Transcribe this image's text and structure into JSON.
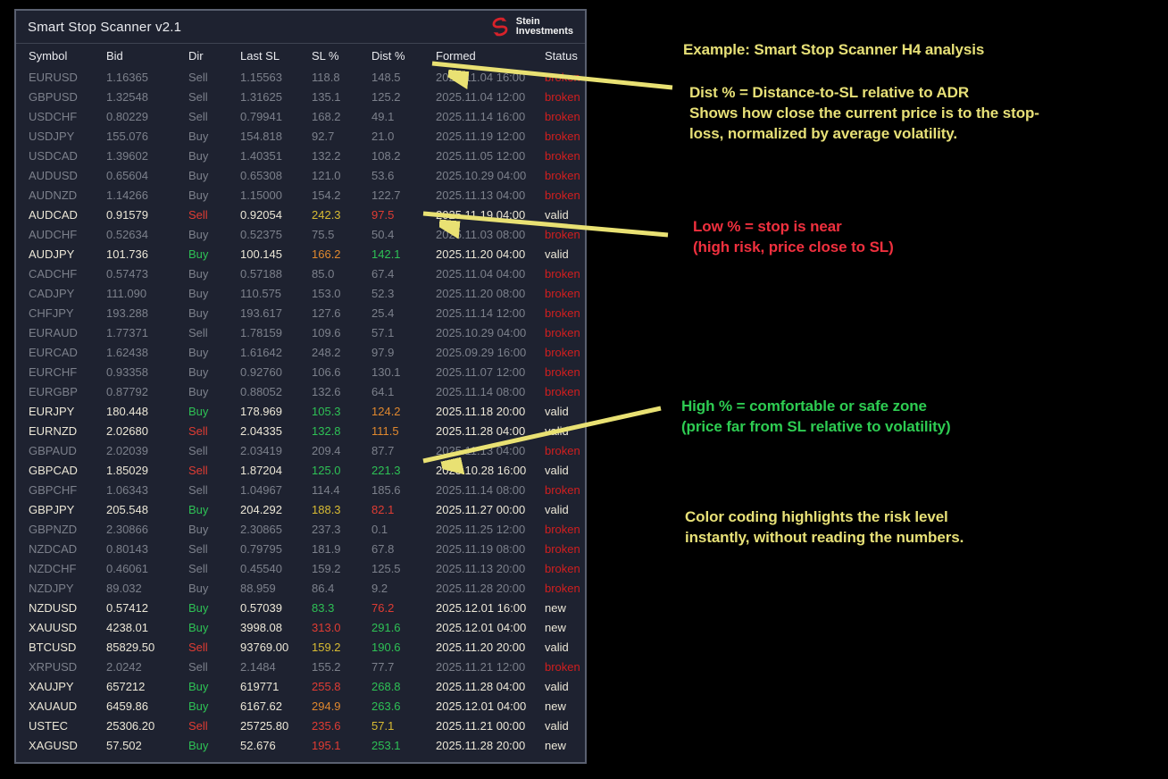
{
  "panel": {
    "title": "Smart Stop Scanner v2.1",
    "brand": {
      "line1": "Stein",
      "line2": "Investments",
      "logo_color": "#d8222a"
    }
  },
  "table": {
    "columns": [
      "Symbol",
      "Bid",
      "Dir",
      "Last SL",
      "SL %",
      "Dist %",
      "Formed",
      "Status"
    ],
    "rows": [
      {
        "symbol": "EURUSD",
        "bid": "1.16365",
        "dir": "Sell",
        "last_sl": "1.15563",
        "sl_pct": "118.8",
        "sl_color": "",
        "dist_pct": "148.5",
        "dist_color": "",
        "formed": "2025.11.04 16:00",
        "status": "broken",
        "dim": true
      },
      {
        "symbol": "GBPUSD",
        "bid": "1.32548",
        "dir": "Sell",
        "last_sl": "1.31625",
        "sl_pct": "135.1",
        "sl_color": "",
        "dist_pct": "125.2",
        "dist_color": "",
        "formed": "2025.11.04 12:00",
        "status": "broken",
        "dim": true
      },
      {
        "symbol": "USDCHF",
        "bid": "0.80229",
        "dir": "Sell",
        "last_sl": "0.79941",
        "sl_pct": "168.2",
        "sl_color": "",
        "dist_pct": "49.1",
        "dist_color": "",
        "formed": "2025.11.14 16:00",
        "status": "broken",
        "dim": true
      },
      {
        "symbol": "USDJPY",
        "bid": "155.076",
        "dir": "Buy",
        "last_sl": "154.818",
        "sl_pct": "92.7",
        "sl_color": "",
        "dist_pct": "21.0",
        "dist_color": "",
        "formed": "2025.11.19 12:00",
        "status": "broken",
        "dim": true
      },
      {
        "symbol": "USDCAD",
        "bid": "1.39602",
        "dir": "Buy",
        "last_sl": "1.40351",
        "sl_pct": "132.2",
        "sl_color": "",
        "dist_pct": "108.2",
        "dist_color": "",
        "formed": "2025.11.05 12:00",
        "status": "broken",
        "dim": true
      },
      {
        "symbol": "AUDUSD",
        "bid": "0.65604",
        "dir": "Buy",
        "last_sl": "0.65308",
        "sl_pct": "121.0",
        "sl_color": "",
        "dist_pct": "53.6",
        "dist_color": "",
        "formed": "2025.10.29 04:00",
        "status": "broken",
        "dim": true
      },
      {
        "symbol": "AUDNZD",
        "bid": "1.14266",
        "dir": "Buy",
        "last_sl": "1.15000",
        "sl_pct": "154.2",
        "sl_color": "",
        "dist_pct": "122.7",
        "dist_color": "",
        "formed": "2025.11.13 04:00",
        "status": "broken",
        "dim": true
      },
      {
        "symbol": "AUDCAD",
        "bid": "0.91579",
        "dir": "Sell",
        "last_sl": "0.92054",
        "sl_pct": "242.3",
        "sl_color": "yellow",
        "dist_pct": "97.5",
        "dist_color": "red",
        "formed": "2025.11.19 04:00",
        "status": "valid",
        "dim": false
      },
      {
        "symbol": "AUDCHF",
        "bid": "0.52634",
        "dir": "Buy",
        "last_sl": "0.52375",
        "sl_pct": "75.5",
        "sl_color": "",
        "dist_pct": "50.4",
        "dist_color": "",
        "formed": "2025.11.03 08:00",
        "status": "broken",
        "dim": true
      },
      {
        "symbol": "AUDJPY",
        "bid": "101.736",
        "dir": "Buy",
        "last_sl": "100.145",
        "sl_pct": "166.2",
        "sl_color": "orange",
        "dist_pct": "142.1",
        "dist_color": "green",
        "formed": "2025.11.20 04:00",
        "status": "valid",
        "dim": false
      },
      {
        "symbol": "CADCHF",
        "bid": "0.57473",
        "dir": "Buy",
        "last_sl": "0.57188",
        "sl_pct": "85.0",
        "sl_color": "",
        "dist_pct": "67.4",
        "dist_color": "",
        "formed": "2025.11.04 04:00",
        "status": "broken",
        "dim": true
      },
      {
        "symbol": "CADJPY",
        "bid": "111.090",
        "dir": "Buy",
        "last_sl": "110.575",
        "sl_pct": "153.0",
        "sl_color": "",
        "dist_pct": "52.3",
        "dist_color": "",
        "formed": "2025.11.20 08:00",
        "status": "broken",
        "dim": true
      },
      {
        "symbol": "CHFJPY",
        "bid": "193.288",
        "dir": "Buy",
        "last_sl": "193.617",
        "sl_pct": "127.6",
        "sl_color": "",
        "dist_pct": "25.4",
        "dist_color": "",
        "formed": "2025.11.14 12:00",
        "status": "broken",
        "dim": true
      },
      {
        "symbol": "EURAUD",
        "bid": "1.77371",
        "dir": "Sell",
        "last_sl": "1.78159",
        "sl_pct": "109.6",
        "sl_color": "",
        "dist_pct": "57.1",
        "dist_color": "",
        "formed": "2025.10.29 04:00",
        "status": "broken",
        "dim": true
      },
      {
        "symbol": "EURCAD",
        "bid": "1.62438",
        "dir": "Buy",
        "last_sl": "1.61642",
        "sl_pct": "248.2",
        "sl_color": "",
        "dist_pct": "97.9",
        "dist_color": "",
        "formed": "2025.09.29 16:00",
        "status": "broken",
        "dim": true
      },
      {
        "symbol": "EURCHF",
        "bid": "0.93358",
        "dir": "Buy",
        "last_sl": "0.92760",
        "sl_pct": "106.6",
        "sl_color": "",
        "dist_pct": "130.1",
        "dist_color": "",
        "formed": "2025.11.07 12:00",
        "status": "broken",
        "dim": true
      },
      {
        "symbol": "EURGBP",
        "bid": "0.87792",
        "dir": "Buy",
        "last_sl": "0.88052",
        "sl_pct": "132.6",
        "sl_color": "",
        "dist_pct": "64.1",
        "dist_color": "",
        "formed": "2025.11.14 08:00",
        "status": "broken",
        "dim": true
      },
      {
        "symbol": "EURJPY",
        "bid": "180.448",
        "dir": "Buy",
        "last_sl": "178.969",
        "sl_pct": "105.3",
        "sl_color": "green",
        "dist_pct": "124.2",
        "dist_color": "orange",
        "formed": "2025.11.18 20:00",
        "status": "valid",
        "dim": false
      },
      {
        "symbol": "EURNZD",
        "bid": "2.02680",
        "dir": "Sell",
        "last_sl": "2.04335",
        "sl_pct": "132.8",
        "sl_color": "green",
        "dist_pct": "111.5",
        "dist_color": "orange",
        "formed": "2025.11.28 04:00",
        "status": "valid",
        "dim": false
      },
      {
        "symbol": "GBPAUD",
        "bid": "2.02039",
        "dir": "Sell",
        "last_sl": "2.03419",
        "sl_pct": "209.4",
        "sl_color": "",
        "dist_pct": "87.7",
        "dist_color": "",
        "formed": "2025.11.13 04:00",
        "status": "broken",
        "dim": true
      },
      {
        "symbol": "GBPCAD",
        "bid": "1.85029",
        "dir": "Sell",
        "last_sl": "1.87204",
        "sl_pct": "125.0",
        "sl_color": "green",
        "dist_pct": "221.3",
        "dist_color": "green",
        "formed": "2025.10.28 16:00",
        "status": "valid",
        "dim": false
      },
      {
        "symbol": "GBPCHF",
        "bid": "1.06343",
        "dir": "Sell",
        "last_sl": "1.04967",
        "sl_pct": "114.4",
        "sl_color": "",
        "dist_pct": "185.6",
        "dist_color": "",
        "formed": "2025.11.14 08:00",
        "status": "broken",
        "dim": true
      },
      {
        "symbol": "GBPJPY",
        "bid": "205.548",
        "dir": "Buy",
        "last_sl": "204.292",
        "sl_pct": "188.3",
        "sl_color": "yellow",
        "dist_pct": "82.1",
        "dist_color": "red",
        "formed": "2025.11.27 00:00",
        "status": "valid",
        "dim": false
      },
      {
        "symbol": "GBPNZD",
        "bid": "2.30866",
        "dir": "Buy",
        "last_sl": "2.30865",
        "sl_pct": "237.3",
        "sl_color": "",
        "dist_pct": "0.1",
        "dist_color": "",
        "formed": "2025.11.25 12:00",
        "status": "broken",
        "dim": true
      },
      {
        "symbol": "NZDCAD",
        "bid": "0.80143",
        "dir": "Sell",
        "last_sl": "0.79795",
        "sl_pct": "181.9",
        "sl_color": "",
        "dist_pct": "67.8",
        "dist_color": "",
        "formed": "2025.11.19 08:00",
        "status": "broken",
        "dim": true
      },
      {
        "symbol": "NZDCHF",
        "bid": "0.46061",
        "dir": "Sell",
        "last_sl": "0.45540",
        "sl_pct": "159.2",
        "sl_color": "",
        "dist_pct": "125.5",
        "dist_color": "",
        "formed": "2025.11.13 20:00",
        "status": "broken",
        "dim": true
      },
      {
        "symbol": "NZDJPY",
        "bid": "89.032",
        "dir": "Buy",
        "last_sl": "88.959",
        "sl_pct": "86.4",
        "sl_color": "",
        "dist_pct": "9.2",
        "dist_color": "",
        "formed": "2025.11.28 20:00",
        "status": "broken",
        "dim": true
      },
      {
        "symbol": "NZDUSD",
        "bid": "0.57412",
        "dir": "Buy",
        "last_sl": "0.57039",
        "sl_pct": "83.3",
        "sl_color": "green",
        "dist_pct": "76.2",
        "dist_color": "red",
        "formed": "2025.12.01 16:00",
        "status": "new",
        "dim": false
      },
      {
        "symbol": "XAUUSD",
        "bid": "4238.01",
        "dir": "Buy",
        "last_sl": "3998.08",
        "sl_pct": "313.0",
        "sl_color": "red",
        "dist_pct": "291.6",
        "dist_color": "green",
        "formed": "2025.12.01 04:00",
        "status": "new",
        "dim": false
      },
      {
        "symbol": "BTCUSD",
        "bid": "85829.50",
        "dir": "Sell",
        "last_sl": "93769.00",
        "sl_pct": "159.2",
        "sl_color": "yellow",
        "dist_pct": "190.6",
        "dist_color": "green",
        "formed": "2025.11.20 20:00",
        "status": "valid",
        "dim": false
      },
      {
        "symbol": "XRPUSD",
        "bid": "2.0242",
        "dir": "Sell",
        "last_sl": "2.1484",
        "sl_pct": "155.2",
        "sl_color": "",
        "dist_pct": "77.7",
        "dist_color": "",
        "formed": "2025.11.21 12:00",
        "status": "broken",
        "dim": true
      },
      {
        "symbol": "XAUJPY",
        "bid": "657212",
        "dir": "Buy",
        "last_sl": "619771",
        "sl_pct": "255.8",
        "sl_color": "red",
        "dist_pct": "268.8",
        "dist_color": "green",
        "formed": "2025.11.28 04:00",
        "status": "valid",
        "dim": false
      },
      {
        "symbol": "XAUAUD",
        "bid": "6459.86",
        "dir": "Buy",
        "last_sl": "6167.62",
        "sl_pct": "294.9",
        "sl_color": "orange",
        "dist_pct": "263.6",
        "dist_color": "green",
        "formed": "2025.12.01 04:00",
        "status": "new",
        "dim": false
      },
      {
        "symbol": "USTEC",
        "bid": "25306.20",
        "dir": "Sell",
        "last_sl": "25725.80",
        "sl_pct": "235.6",
        "sl_color": "red",
        "dist_pct": "57.1",
        "dist_color": "yellow",
        "formed": "2025.11.21 00:00",
        "status": "valid",
        "dim": false
      },
      {
        "symbol": "XAGUSD",
        "bid": "57.502",
        "dir": "Buy",
        "last_sl": "52.676",
        "sl_pct": "195.1",
        "sl_color": "red",
        "dist_pct": "253.1",
        "dist_color": "green",
        "formed": "2025.11.28 20:00",
        "status": "new",
        "dim": false
      }
    ]
  },
  "annotations": {
    "example": {
      "color": "#e7e077",
      "lines": [
        "Example: Smart Stop Scanner H4 analysis"
      ]
    },
    "dist_block": {
      "color": "#e7e077",
      "lines": [
        "Dist % = Distance-to-SL relative to ADR",
        "Shows how close the current price is to the stop-",
        "loss, normalized by average volatility."
      ]
    },
    "low_block": {
      "color": "#f0303e",
      "lines": [
        "Low % = stop is near",
        "(high risk, price close to SL)"
      ]
    },
    "high_block": {
      "color": "#2ecc52",
      "lines": [
        "High % = comfortable or safe zone",
        "(price far from SL relative to volatility)"
      ]
    },
    "color_block": {
      "color": "#e7e077",
      "lines": [
        "Color coding highlights the risk level",
        "instantly, without reading the numbers."
      ]
    }
  },
  "colors": {
    "panel_bg": "#1e2230",
    "panel_border": "#5a6070",
    "bright_text": "#ece7d7",
    "dim_text": "#7c808b",
    "green": "#2ec155",
    "red": "#e03c33",
    "orange": "#e0882e",
    "yellow": "#d8bb33",
    "broken_red": "#d11f1f",
    "arrow_yellow": "#e9e173"
  }
}
